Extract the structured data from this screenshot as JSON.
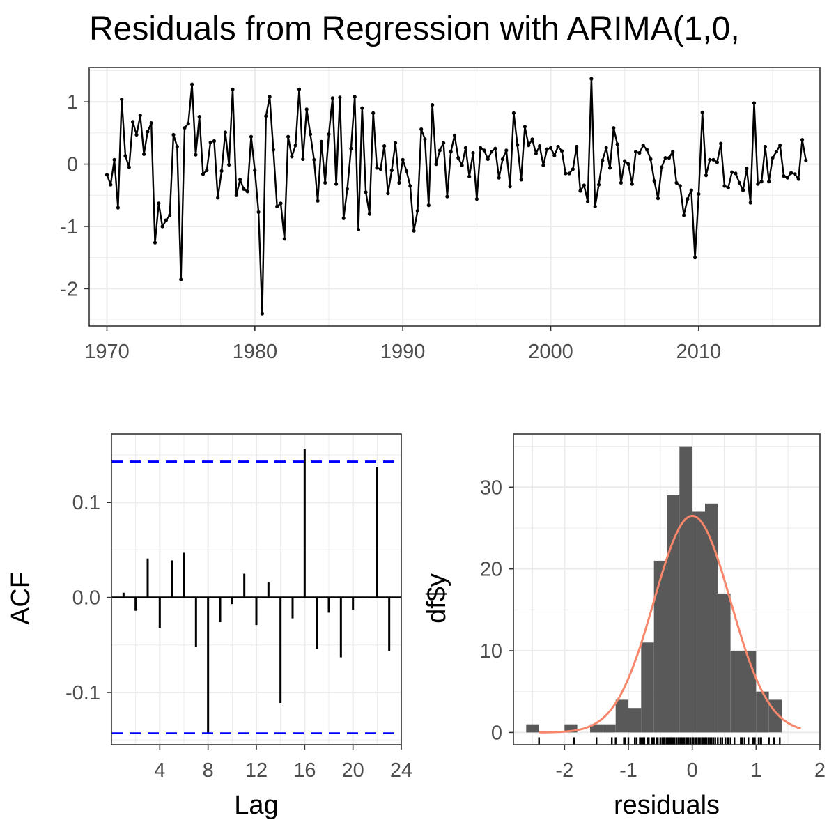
{
  "title": "Residuals from Regression with ARIMA(1,0,",
  "chart_data": [
    {
      "type": "line",
      "name": "residual-series",
      "xlim": [
        1968.8,
        2018.2
      ],
      "ylim": [
        -2.6,
        1.55
      ],
      "x_ticks": [
        1970,
        1980,
        1990,
        2000,
        2010
      ],
      "y_ticks": [
        1,
        0,
        -1,
        -2
      ],
      "x_tick_labels": [
        "1970",
        "1980",
        "1990",
        "2000",
        "2010"
      ],
      "y_tick_labels": [
        "1",
        "0",
        "-1",
        "-2"
      ],
      "x_start": 1970.0,
      "x_step": 0.25,
      "values": [
        -0.17,
        -0.33,
        0.07,
        -0.7,
        1.04,
        0.13,
        -0.05,
        0.68,
        0.47,
        0.78,
        0.16,
        0.52,
        0.66,
        -1.26,
        -0.63,
        -1.0,
        -0.9,
        -0.82,
        0.47,
        0.28,
        -1.85,
        0.58,
        0.65,
        1.28,
        0.15,
        0.76,
        -0.16,
        -0.1,
        0.35,
        0.37,
        -0.54,
        -0.11,
        0.51,
        -0.01,
        1.2,
        -0.5,
        -0.25,
        -0.4,
        -0.44,
        0.44,
        -0.1,
        -0.77,
        -2.4,
        0.77,
        1.08,
        0.23,
        -0.68,
        -0.63,
        -1.2,
        0.44,
        0.12,
        0.3,
        1.2,
        0.08,
        0.88,
        0.48,
        0.07,
        -0.59,
        0.36,
        -0.3,
        0.48,
        1.06,
        -0.32,
        1.07,
        -0.87,
        -0.4,
        0.25,
        1.08,
        -1.05,
        0.9,
        -0.45,
        -0.8,
        0.82,
        -0.06,
        -0.08,
        0.29,
        -0.47,
        -0.1,
        0.34,
        -0.3,
        0.07,
        -0.11,
        -0.35,
        -1.07,
        -0.75,
        0.56,
        0.4,
        -0.66,
        0.95,
        0.0,
        0.22,
        0.34,
        -0.52,
        0.2,
        0.46,
        0.1,
        -0.02,
        0.26,
        -0.2,
        0.18,
        -0.56,
        0.26,
        0.22,
        0.08,
        0.2,
        0.25,
        -0.22,
        0.08,
        0.22,
        -0.36,
        0.82,
        0.31,
        -0.25,
        0.6,
        0.3,
        0.4,
        0.17,
        0.29,
        -0.02,
        0.24,
        0.26,
        0.14,
        0.28,
        0.21,
        -0.15,
        -0.15,
        -0.08,
        0.28,
        -0.43,
        -0.34,
        -0.6,
        1.37,
        -0.68,
        -0.33,
        0.06,
        0.26,
        -0.06,
        0.58,
        0.32,
        -0.3,
        0.05,
        0.0,
        -0.32,
        0.2,
        0.18,
        0.3,
        0.23,
        0.08,
        -0.27,
        -0.55,
        -0.05,
        0.1,
        0.1,
        0.2,
        -0.3,
        -0.35,
        -0.82,
        -0.56,
        -0.42,
        -1.5,
        -0.48,
        0.83,
        -0.18,
        0.07,
        0.07,
        0.03,
        0.33,
        -0.35,
        -0.38,
        -0.13,
        -0.15,
        -0.3,
        -0.42,
        -0.07,
        -0.62,
        0.98,
        -0.32,
        -0.28,
        0.28,
        -0.28,
        0.1,
        0.2,
        0.3,
        -0.19,
        -0.22,
        -0.14,
        -0.16,
        -0.24,
        0.39,
        0.06
      ]
    },
    {
      "type": "bar",
      "name": "acf",
      "xlabel": "Lag",
      "ylabel": "ACF",
      "xlim": [
        0,
        24
      ],
      "ylim": [
        -0.155,
        0.172
      ],
      "x_ticks": [
        4,
        8,
        12,
        16,
        20,
        24
      ],
      "y_ticks": [
        0.1,
        0.0,
        -0.1
      ],
      "x_tick_labels": [
        "4",
        "8",
        "12",
        "16",
        "20",
        "24"
      ],
      "y_tick_labels": [
        "0.1",
        "0.0",
        "-0.1"
      ],
      "lags": [
        1,
        2,
        3,
        4,
        5,
        6,
        7,
        8,
        9,
        10,
        11,
        12,
        13,
        14,
        15,
        16,
        17,
        18,
        19,
        20,
        21,
        22,
        23
      ],
      "values": [
        0.005,
        -0.014,
        0.041,
        -0.032,
        0.039,
        0.047,
        -0.052,
        -0.143,
        -0.026,
        -0.007,
        0.025,
        -0.029,
        0.016,
        -0.111,
        -0.022,
        0.156,
        -0.054,
        -0.016,
        -0.063,
        -0.013,
        -0.001,
        0.137,
        -0.056
      ],
      "ci": 0.143
    },
    {
      "type": "bar",
      "name": "residual-histogram",
      "xlabel": "residuals",
      "ylabel": "df$y",
      "xlim": [
        -2.8,
        2.0
      ],
      "ylim": [
        -1.5,
        36.5
      ],
      "x_ticks": [
        -2,
        -1,
        0,
        1,
        2
      ],
      "y_ticks": [
        0,
        10,
        20,
        30
      ],
      "x_tick_labels": [
        "-2",
        "-1",
        "0",
        "1",
        "2"
      ],
      "y_tick_labels": [
        "0",
        "10",
        "20",
        "30"
      ],
      "bin_width": 0.2,
      "bin_starts": [
        -2.6,
        -2.4,
        -2.2,
        -2.0,
        -1.8,
        -1.6,
        -1.4,
        -1.2,
        -1.0,
        -0.8,
        -0.6,
        -0.4,
        -0.2,
        0.0,
        0.2,
        0.4,
        0.6,
        0.8,
        1.0,
        1.2
      ],
      "counts": [
        1,
        0,
        0,
        1,
        0,
        1,
        1,
        4,
        3,
        11,
        21,
        29,
        35,
        27,
        28,
        17,
        10,
        10,
        5,
        4
      ],
      "normal_curve": {
        "mean": 0.0,
        "sd": 0.6,
        "peak": 26.5,
        "x_range": [
          -2.4,
          1.7
        ],
        "color": "#f8866a"
      },
      "rug": [
        -2.4,
        -1.85,
        -1.5,
        -1.26,
        -1.2,
        -1.07,
        -1.05,
        -1.0,
        -0.9,
        -0.87,
        -0.82,
        -0.8,
        -0.77,
        -0.75,
        -0.7,
        -0.68,
        -0.63,
        -0.6,
        -0.56,
        -0.54,
        -0.5,
        -0.47,
        -0.45,
        -0.44,
        -0.43,
        -0.4,
        -0.38,
        -0.35,
        -0.33,
        -0.3,
        -0.28,
        -0.25,
        -0.22,
        -0.19,
        -0.16,
        -0.13,
        -0.1,
        -0.08,
        -0.06,
        -0.03,
        0.0,
        0.02,
        0.05,
        0.07,
        0.1,
        0.12,
        0.15,
        0.17,
        0.2,
        0.22,
        0.25,
        0.28,
        0.3,
        0.33,
        0.36,
        0.4,
        0.44,
        0.47,
        0.52,
        0.56,
        0.6,
        0.66,
        0.76,
        0.78,
        0.82,
        0.88,
        0.95,
        0.98,
        1.04,
        1.07,
        1.08,
        1.2,
        1.28,
        1.37
      ]
    }
  ]
}
